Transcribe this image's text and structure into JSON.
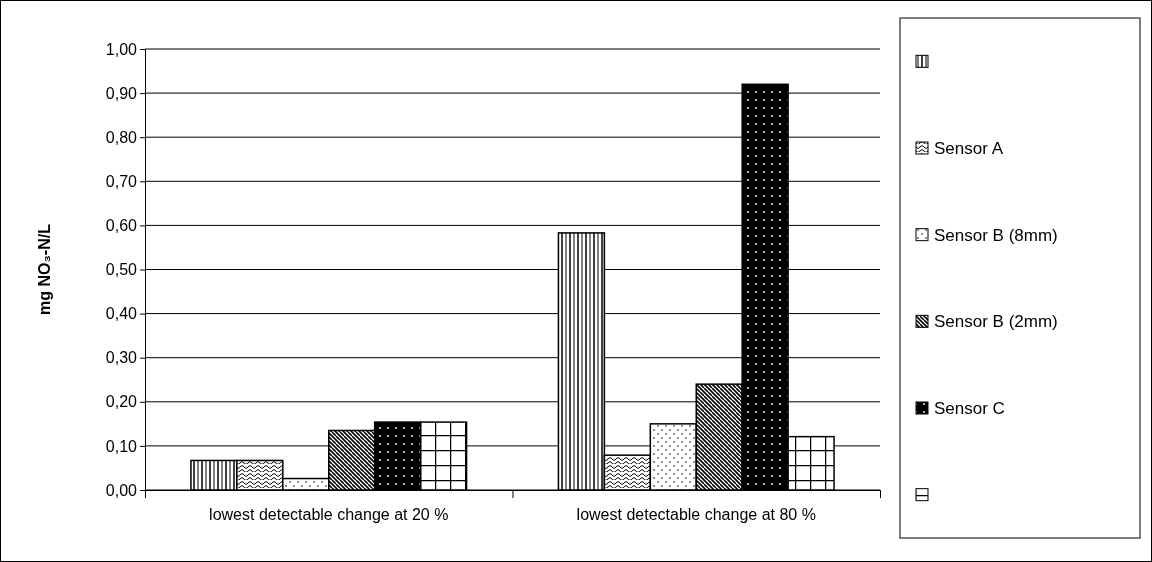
{
  "chart_data": {
    "type": "bar",
    "ylabel": "mg NO₃-N/L",
    "categories": [
      "lowest detectable change at 20 %",
      "lowest detectable change at 80 %"
    ],
    "series": [
      {
        "color": "#000000",
        "values": [
          0.067,
          0.583
        ]
      },
      {
        "name": "Sensor A",
        "color": "#000000",
        "values": [
          0.067,
          0.079
        ]
      },
      {
        "name": "Sensor B (8mm)",
        "color": "#000000",
        "values": [
          0.026,
          0.15
        ]
      },
      {
        "name": "Sensor B (2mm)",
        "color": "#000000",
        "values": [
          0.135,
          0.24
        ]
      },
      {
        "name": "Sensor C",
        "color": "#000000",
        "values": [
          0.154,
          0.92
        ]
      },
      {
        "color": "#000000",
        "values": [
          0.154,
          0.121
        ]
      }
    ],
    "ylim": [
      0,
      1
    ],
    "yticks": [
      {
        "value": 0,
        "label": "0,00"
      },
      {
        "value": 0.1,
        "label": "0,10"
      },
      {
        "value": 0.2,
        "label": "0,20"
      },
      {
        "value": 0.3,
        "label": "0,30"
      },
      {
        "value": 0.4,
        "label": "0,40"
      },
      {
        "value": 0.5,
        "label": "0,50"
      },
      {
        "value": 0.6,
        "label": "0,60"
      },
      {
        "value": 0.7,
        "label": "0,70"
      },
      {
        "value": 0.8,
        "label": "0,80"
      },
      {
        "value": 0.9,
        "label": "0,90"
      },
      {
        "value": 1,
        "label": "1,00"
      }
    ],
    "grid": "y",
    "legend": "right"
  }
}
